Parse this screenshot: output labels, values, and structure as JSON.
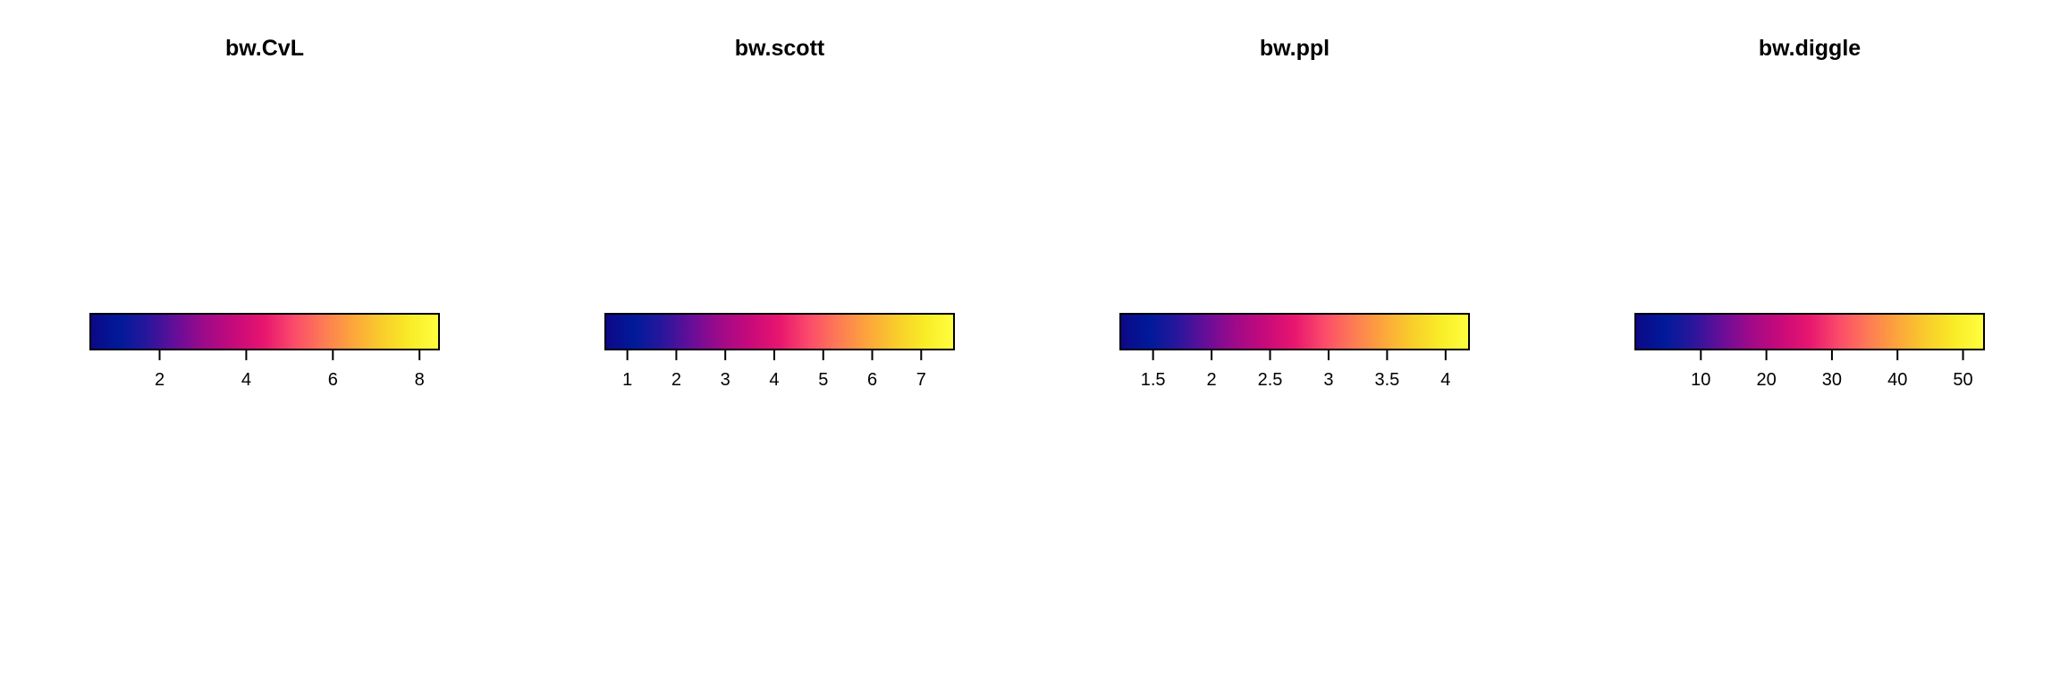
{
  "chart_data": [
    {
      "type": "colorbar",
      "title": "bw.CvL",
      "range": [
        0.4,
        8.45
      ],
      "ticks": [
        2,
        4,
        6,
        8
      ],
      "tick_labels": [
        "2",
        "4",
        "6",
        "8"
      ],
      "colormap": [
        "#0d0887",
        "#001a9a",
        "#2a169c",
        "#6a0d98",
        "#a10a88",
        "#c80a7a",
        "#e8166f",
        "#fb4a6a",
        "#fd7a55",
        "#fca43c",
        "#f9cc2b",
        "#f9ec27",
        "#ffff40"
      ]
    },
    {
      "type": "colorbar",
      "title": "bw.scott",
      "range": [
        0.55,
        7.67
      ],
      "ticks": [
        1,
        2,
        3,
        4,
        5,
        6,
        7
      ],
      "tick_labels": [
        "1",
        "2",
        "3",
        "4",
        "5",
        "6",
        "7"
      ],
      "colormap": [
        "#0d0887",
        "#001a9a",
        "#2a169c",
        "#6a0d98",
        "#a10a88",
        "#c80a7a",
        "#e8166f",
        "#fb4a6a",
        "#fd7a55",
        "#fca43c",
        "#f9cc2b",
        "#f9ec27",
        "#ffff40"
      ]
    },
    {
      "type": "colorbar",
      "title": "bw.ppl",
      "range": [
        1.22,
        4.2
      ],
      "ticks": [
        1.5,
        2,
        2.5,
        3,
        3.5,
        4
      ],
      "tick_labels": [
        "1.5",
        "2",
        "2.5",
        "3",
        "3.5",
        "4"
      ],
      "colormap": [
        "#0d0887",
        "#001a9a",
        "#2a169c",
        "#6a0d98",
        "#a10a88",
        "#c80a7a",
        "#e8166f",
        "#fb4a6a",
        "#fd7a55",
        "#fca43c",
        "#f9cc2b",
        "#f9ec27",
        "#ffff40"
      ]
    },
    {
      "type": "colorbar",
      "title": "bw.diggle",
      "range": [
        0,
        53.2
      ],
      "ticks": [
        10,
        20,
        30,
        40,
        50
      ],
      "tick_labels": [
        "10",
        "20",
        "30",
        "40",
        "50"
      ],
      "colormap": [
        "#0d0887",
        "#001a9a",
        "#2a169c",
        "#6a0d98",
        "#a10a88",
        "#c80a7a",
        "#e8166f",
        "#fb4a6a",
        "#fd7a55",
        "#fca43c",
        "#f9cc2b",
        "#f9ec27",
        "#ffff40"
      ]
    }
  ]
}
